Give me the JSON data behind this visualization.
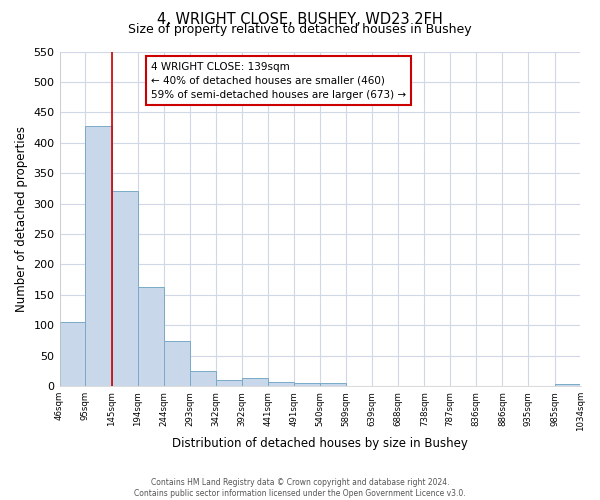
{
  "title": "4, WRIGHT CLOSE, BUSHEY, WD23 2FH",
  "subtitle": "Size of property relative to detached houses in Bushey",
  "xlabel": "Distribution of detached houses by size in Bushey",
  "ylabel": "Number of detached properties",
  "bar_values": [
    105,
    428,
    321,
    163,
    75,
    25,
    10,
    13,
    7,
    5,
    5,
    0,
    0,
    0,
    0,
    0,
    0,
    0,
    0,
    4
  ],
  "bin_edges": [
    46,
    95,
    145,
    194,
    244,
    293,
    342,
    392,
    441,
    491,
    540,
    589,
    639,
    688,
    738,
    787,
    836,
    886,
    935,
    985,
    1034
  ],
  "tick_labels": [
    "46sqm",
    "95sqm",
    "145sqm",
    "194sqm",
    "244sqm",
    "293sqm",
    "342sqm",
    "392sqm",
    "441sqm",
    "491sqm",
    "540sqm",
    "589sqm",
    "639sqm",
    "688sqm",
    "738sqm",
    "787sqm",
    "836sqm",
    "886sqm",
    "935sqm",
    "985sqm",
    "1034sqm"
  ],
  "bar_color": "#c8d8ea",
  "bar_edge_color": "#7aaac8",
  "ylim": [
    0,
    550
  ],
  "yticks": [
    0,
    50,
    100,
    150,
    200,
    250,
    300,
    350,
    400,
    450,
    500,
    550
  ],
  "red_line_x": 145,
  "annotation_line1": "4 WRIGHT CLOSE: 139sqm",
  "annotation_line2": "← 40% of detached houses are smaller (460)",
  "annotation_line3": "59% of semi-detached houses are larger (673) →",
  "annotation_box_color": "#ffffff",
  "annotation_box_edge_color": "#cc0000",
  "footer_line1": "Contains HM Land Registry data © Crown copyright and database right 2024.",
  "footer_line2": "Contains public sector information licensed under the Open Government Licence v3.0.",
  "background_color": "#ffffff",
  "plot_bg_color": "#ffffff",
  "grid_color": "#d0d8e8"
}
